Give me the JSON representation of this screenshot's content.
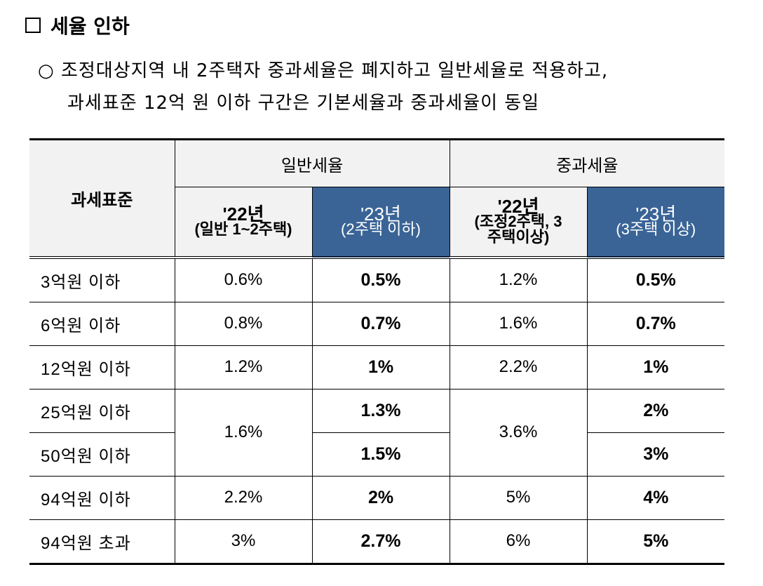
{
  "heading": "세율 인하",
  "bullet_lines": [
    "조정대상지역 내 2주택자 중과세율은 폐지하고 일반세율로 적용하고,",
    "과세표준 12억 원 이하 구간은 기본세율과 중과세율이 동일"
  ],
  "colors": {
    "header_bg": "#f2f2f2",
    "highlight": "#3a6496"
  },
  "table": {
    "col_base": "과세표준",
    "group1": "일반세율",
    "group2": "중과세율",
    "sub": [
      {
        "year": "'22년",
        "desc": "(일반 1~2주택)"
      },
      {
        "year": "'23년",
        "desc": "(2주택 이하)"
      },
      {
        "year": "'22년",
        "desc": "(조정2주택, 3주택이상)"
      },
      {
        "year": "'23년",
        "desc": "(3주택 이상)"
      }
    ],
    "rows": [
      [
        "3억원 이하",
        "0.6%",
        "0.5%",
        "1.2%",
        "0.5%"
      ],
      [
        "6억원 이하",
        "0.8%",
        "0.7%",
        "1.6%",
        "0.7%"
      ],
      [
        "12억원 이하",
        "1.2%",
        "1%",
        "2.2%",
        "1%"
      ],
      [
        "25억원 이하",
        "1.6%",
        "1.3%",
        "3.6%",
        "2%"
      ],
      [
        "50억원 이하",
        "",
        "1.5%",
        "",
        "3%"
      ],
      [
        "94억원 이하",
        "2.2%",
        "2%",
        "5%",
        "4%"
      ],
      [
        "94억원 초과",
        "3%",
        "2.7%",
        "6%",
        "5%"
      ]
    ]
  }
}
